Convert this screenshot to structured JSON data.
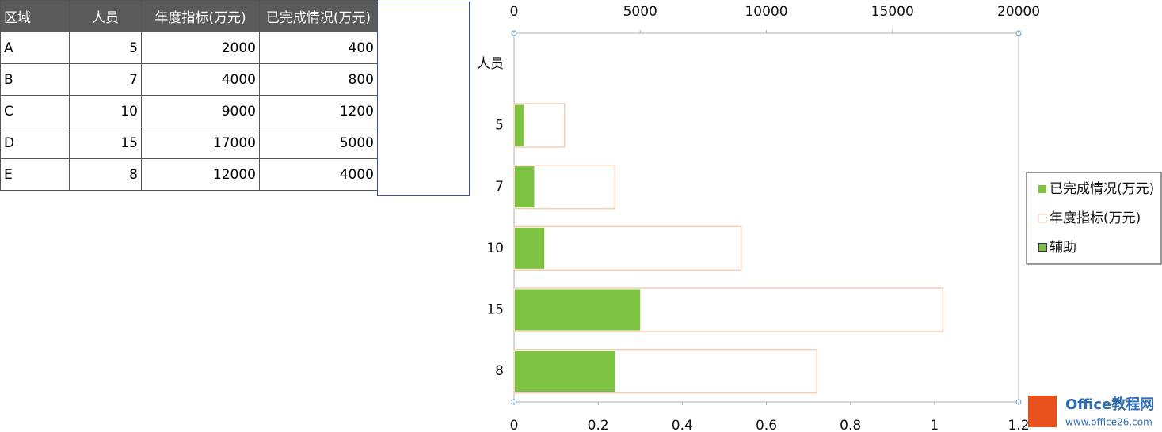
{
  "table": {
    "header": [
      "区域",
      "人员",
      "年度指标(万元)",
      "已完成情况(万元)"
    ],
    "rows": [
      [
        "A",
        5,
        2000,
        400
      ],
      [
        "B",
        7,
        4000,
        800
      ],
      [
        "C",
        10,
        9000,
        1200
      ],
      [
        "D",
        15,
        17000,
        5000
      ],
      [
        "E",
        8,
        12000,
        4000
      ]
    ]
  },
  "chart_data": {
    "type": "hbar",
    "categories": [
      "人员",
      "5",
      "7",
      "10",
      "15",
      "8"
    ],
    "series": [
      {
        "name": "已完成情况(万元)",
        "color": "#7dc242",
        "values": [
          null,
          400,
          800,
          1200,
          5000,
          4000
        ]
      },
      {
        "name": "年度指标(万元)",
        "color": "#ffffff",
        "values": [
          null,
          2000,
          4000,
          9000,
          17000,
          12000
        ]
      },
      {
        "name": "辅助",
        "color": "#7dc242",
        "axis": "x2",
        "values": [
          null,
          null,
          null,
          null,
          null,
          null
        ]
      }
    ],
    "xlim": [
      0,
      20000
    ],
    "xticks": [
      0,
      5000,
      10000,
      15000,
      20000
    ],
    "x2lim": [
      0,
      1.2
    ],
    "x2ticks": [
      0,
      0.2,
      0.4,
      0.6,
      0.8,
      1,
      1.2
    ],
    "legend": "right"
  },
  "watermark": {
    "title": "Office教程网",
    "url": "www.office26.com"
  }
}
